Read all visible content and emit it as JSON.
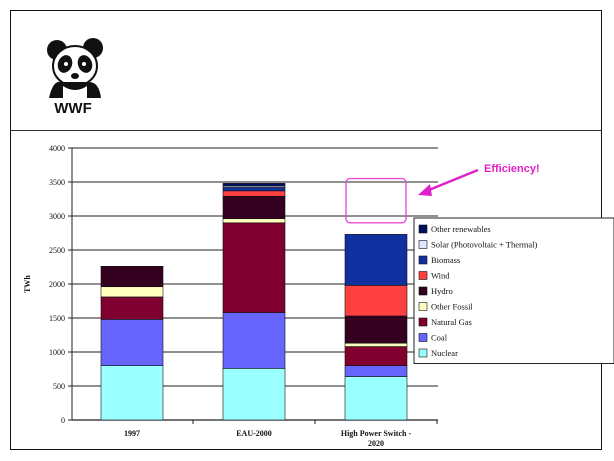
{
  "logo": {
    "brand_text": "WWF"
  },
  "chart_data": {
    "type": "bar",
    "stacked": true,
    "categories": [
      "1997",
      "EAU-2000",
      "High Power Switch - 2020"
    ],
    "category_lines": [
      [
        "1997"
      ],
      [
        "EAU-2000"
      ],
      [
        "High Power Switch -",
        "2020"
      ]
    ],
    "ylabel": "TWh",
    "ylim": [
      0,
      4000
    ],
    "yticks": [
      0,
      500,
      1000,
      1500,
      2000,
      2500,
      3000,
      3500,
      4000
    ],
    "grid": true,
    "legend_position": "right",
    "series": [
      {
        "name": "Nuclear",
        "color": "#99ffff",
        "values": [
          800,
          760,
          640
        ]
      },
      {
        "name": "Coal",
        "color": "#6666ff",
        "values": [
          680,
          820,
          160
        ]
      },
      {
        "name": "Natural Gas",
        "color": "#800030",
        "values": [
          330,
          1320,
          280
        ]
      },
      {
        "name": "Other Fossil",
        "color": "#ffffc0",
        "values": [
          150,
          60,
          50
        ]
      },
      {
        "name": "Hydro",
        "color": "#330020",
        "values": [
          300,
          330,
          400
        ]
      },
      {
        "name": "Wind",
        "color": "#ff4040",
        "values": [
          0,
          80,
          450
        ]
      },
      {
        "name": "Biomass",
        "color": "#1030a0",
        "values": [
          0,
          50,
          750
        ]
      },
      {
        "name": "Solar (Photovoltaic + Thermal)",
        "color": "#e0e8ff",
        "values": [
          0,
          20,
          0
        ]
      },
      {
        "name": "Other renewables",
        "color": "#001060",
        "values": [
          0,
          40,
          0
        ]
      }
    ],
    "annotation": {
      "text": "Efficiency!",
      "color": "#e020c8"
    }
  }
}
